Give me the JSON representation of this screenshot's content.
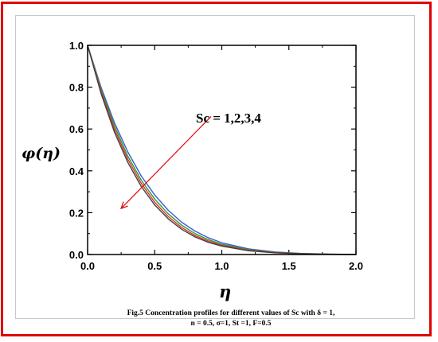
{
  "caption": {
    "line1": "Fig.5 Concentration profiles for different  values of  Sc  with δ = 1,",
    "line2": "n = 0.5, σ=1,  St =1, F=0.5"
  },
  "colors": {
    "frame": "#e00000",
    "arrow": "#e00000",
    "series": [
      "#3a5bd8",
      "#2aa02a",
      "#e03030",
      "#404040"
    ]
  },
  "chart_data": {
    "type": "line",
    "title": "",
    "xlabel": "η",
    "ylabel": "φ(η)",
    "xlim": [
      0.0,
      2.0
    ],
    "ylim": [
      0.0,
      1.0
    ],
    "xticks": [
      "0.0",
      "0.5",
      "1.0",
      "1.5",
      "2.0"
    ],
    "yticks": [
      "0.0",
      "0.2",
      "0.4",
      "0.6",
      "0.8",
      "1.0"
    ],
    "annotation": "Sc = 1,2,3,4",
    "grid": false,
    "series": [
      {
        "x": [
          0.0,
          0.1,
          0.2,
          0.3,
          0.4,
          0.5,
          0.6,
          0.7,
          0.8,
          0.9,
          1.0,
          1.2,
          1.4,
          1.6,
          1.8,
          2.0
        ],
        "y": [
          1.0,
          0.8,
          0.63,
          0.49,
          0.375,
          0.285,
          0.212,
          0.155,
          0.112,
          0.08,
          0.056,
          0.027,
          0.012,
          0.005,
          0.002,
          0.0
        ]
      },
      {
        "x": [
          0.0,
          0.1,
          0.2,
          0.3,
          0.4,
          0.5,
          0.6,
          0.7,
          0.8,
          0.9,
          1.0,
          1.2,
          1.4,
          1.6,
          1.8,
          2.0
        ],
        "y": [
          1.0,
          0.79,
          0.615,
          0.47,
          0.355,
          0.265,
          0.195,
          0.141,
          0.1,
          0.071,
          0.049,
          0.023,
          0.01,
          0.004,
          0.0015,
          0.0
        ]
      },
      {
        "x": [
          0.0,
          0.1,
          0.2,
          0.3,
          0.4,
          0.5,
          0.6,
          0.7,
          0.8,
          0.9,
          1.0,
          1.2,
          1.4,
          1.6,
          1.8,
          2.0
        ],
        "y": [
          1.0,
          0.78,
          0.6,
          0.455,
          0.34,
          0.25,
          0.182,
          0.13,
          0.091,
          0.064,
          0.044,
          0.02,
          0.009,
          0.0035,
          0.001,
          0.0
        ]
      },
      {
        "x": [
          0.0,
          0.1,
          0.2,
          0.3,
          0.4,
          0.5,
          0.6,
          0.7,
          0.8,
          0.9,
          1.0,
          1.2,
          1.4,
          1.6,
          1.8,
          2.0
        ],
        "y": [
          1.0,
          0.77,
          0.585,
          0.44,
          0.325,
          0.237,
          0.171,
          0.121,
          0.084,
          0.058,
          0.04,
          0.018,
          0.008,
          0.003,
          0.001,
          0.0
        ]
      }
    ]
  }
}
